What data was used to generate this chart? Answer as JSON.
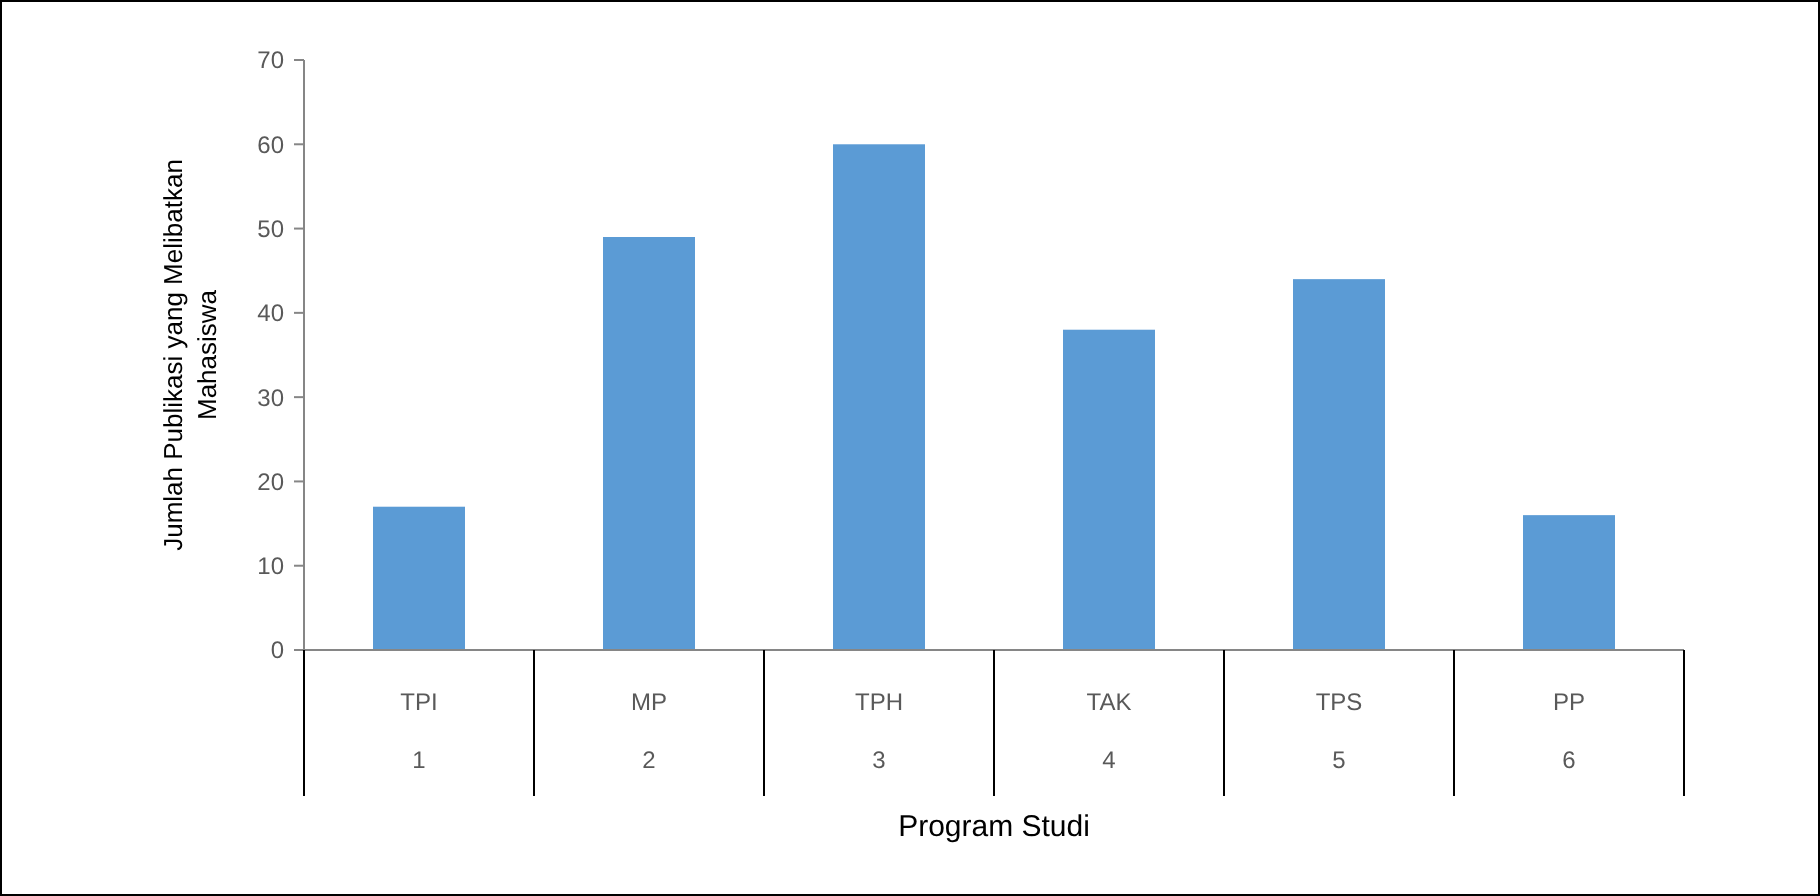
{
  "chart_data": {
    "type": "bar",
    "xlabel": "Program Studi",
    "ylabel": "Jumlah Publikasi yang Melibatkan Mahasiswa",
    "categories": [
      "TPI\n1",
      "MP\n2",
      "TPH\n3",
      "TAK\n4",
      "TPS\n5",
      "PP\n6"
    ],
    "values": [
      17,
      49,
      60,
      38,
      44,
      16
    ],
    "color": "#5b9bd5",
    "ylim": [
      0,
      70
    ],
    "yticks": [
      0,
      10,
      20,
      30,
      40,
      50,
      60,
      70
    ],
    "grid": false
  }
}
